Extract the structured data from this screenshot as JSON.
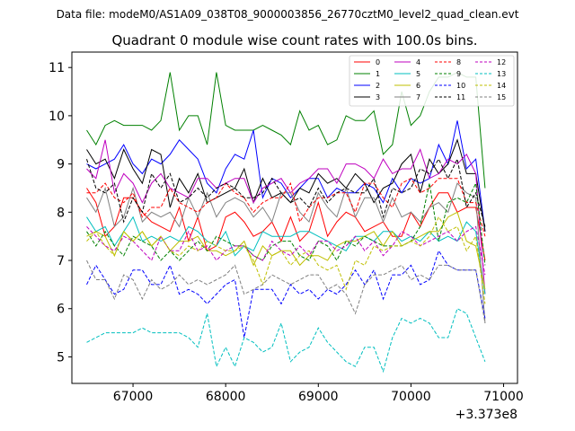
{
  "chart_data": {
    "type": "line",
    "suptitle": "Data file: modeM0/AS1A09_038T08_9000003856_26770cztM0_level2_quad_clean.evt",
    "title": "Quadrant 0 module wise count rates with 100.0s bins.",
    "xlabel": "",
    "ylabel": "",
    "x_offset_label": "+3.373e8",
    "xlim": [
      66340,
      71150
    ],
    "ylim": [
      4.45,
      11.32
    ],
    "xticks": [
      67000,
      68000,
      69000,
      70000,
      71000
    ],
    "yticks": [
      5,
      6,
      7,
      8,
      9,
      10,
      11
    ],
    "grid": false,
    "legend_position": "top-right",
    "legend_columns": 4,
    "x": [
      66500,
      66600,
      66700,
      66800,
      66900,
      67000,
      67100,
      67200,
      67300,
      67400,
      67500,
      67600,
      67700,
      67800,
      67900,
      68000,
      68100,
      68200,
      68300,
      68400,
      68500,
      68600,
      68700,
      68800,
      68900,
      69000,
      69100,
      69200,
      69300,
      69400,
      69500,
      69600,
      69700,
      69800,
      69900,
      70000,
      70100,
      70200,
      70300,
      70400,
      70500,
      70600,
      70700,
      70800
    ],
    "series": [
      {
        "name": "0",
        "color": "#ff0000",
        "dash": false,
        "values": [
          8.5,
          8.2,
          7.5,
          7.7,
          8.3,
          8.3,
          8.0,
          7.8,
          7.7,
          7.6,
          8.1,
          7.4,
          7.9,
          7.2,
          7.3,
          7.9,
          8.0,
          7.8,
          7.5,
          7.6,
          7.8,
          7.4,
          7.9,
          7.4,
          7.6,
          8.2,
          7.5,
          7.8,
          8.0,
          7.9,
          7.6,
          7.7,
          7.8,
          7.5,
          7.5,
          8.0,
          7.7,
          8.1,
          8.4,
          8.4,
          8.0,
          8.1,
          8.1,
          7.0
        ]
      },
      {
        "name": "1",
        "color": "#008000",
        "dash": false,
        "values": [
          9.7,
          9.4,
          9.8,
          9.9,
          9.8,
          9.8,
          9.8,
          9.7,
          9.9,
          10.9,
          9.7,
          10.0,
          10.0,
          9.4,
          10.9,
          9.8,
          9.7,
          9.7,
          9.7,
          9.8,
          9.7,
          9.6,
          9.4,
          10.1,
          9.7,
          9.8,
          9.4,
          9.5,
          10.0,
          9.9,
          9.9,
          10.1,
          9.2,
          9.4,
          10.5,
          9.8,
          10.0,
          10.5,
          10.8,
          10.8,
          10.9,
          10.8,
          10.8,
          8.5
        ]
      },
      {
        "name": "2",
        "color": "#0000ff",
        "dash": false,
        "values": [
          9.0,
          8.9,
          9.0,
          9.1,
          9.4,
          9.0,
          8.8,
          9.1,
          9.0,
          9.2,
          9.5,
          9.3,
          9.1,
          8.6,
          8.4,
          8.9,
          9.2,
          9.1,
          9.7,
          8.3,
          8.7,
          8.6,
          8.3,
          8.5,
          8.7,
          8.7,
          8.3,
          8.5,
          8.4,
          8.4,
          8.6,
          8.5,
          8.2,
          8.7,
          8.4,
          8.7,
          8.6,
          8.7,
          9.4,
          9.0,
          9.9,
          8.9,
          9.1,
          7.6
        ]
      },
      {
        "name": "3",
        "color": "#000000",
        "dash": false,
        "values": [
          9.3,
          9.0,
          9.1,
          8.7,
          9.3,
          8.9,
          8.6,
          9.3,
          9.2,
          8.1,
          8.7,
          8.4,
          8.8,
          8.2,
          8.3,
          8.4,
          8.5,
          8.9,
          8.2,
          8.7,
          8.3,
          8.4,
          8.2,
          8.5,
          8.4,
          8.8,
          8.6,
          8.7,
          8.5,
          8.8,
          8.6,
          8.2,
          8.5,
          8.6,
          9.0,
          9.2,
          8.4,
          9.1,
          8.8,
          9.0,
          9.5,
          8.8,
          8.8,
          7.6
        ]
      },
      {
        "name": "4",
        "color": "#bf00bf",
        "dash": false,
        "values": [
          8.9,
          8.7,
          9.5,
          8.4,
          8.8,
          8.6,
          8.2,
          8.6,
          8.8,
          8.5,
          8.4,
          8.3,
          8.7,
          8.7,
          8.5,
          8.6,
          8.7,
          8.7,
          8.2,
          8.5,
          8.6,
          8.7,
          8.4,
          8.6,
          8.7,
          8.9,
          8.9,
          8.6,
          9.0,
          9.0,
          8.9,
          8.7,
          9.1,
          8.8,
          8.9,
          8.9,
          9.3,
          8.7,
          8.8,
          9.1,
          9.0,
          9.2,
          8.8,
          6.3
        ]
      },
      {
        "name": "5",
        "color": "#00bfbf",
        "dash": false,
        "values": [
          7.9,
          7.6,
          7.7,
          7.3,
          7.6,
          7.9,
          7.4,
          7.5,
          7.4,
          7.5,
          7.4,
          7.7,
          7.6,
          7.4,
          7.3,
          7.6,
          7.1,
          7.3,
          7.2,
          7.6,
          7.5,
          7.5,
          7.5,
          7.6,
          7.6,
          7.5,
          7.4,
          7.3,
          7.2,
          7.5,
          7.5,
          7.4,
          7.6,
          7.6,
          7.4,
          7.5,
          7.4,
          7.6,
          7.4,
          7.5,
          7.4,
          7.8,
          7.6,
          6.3
        ]
      },
      {
        "name": "6",
        "color": "#bfbf00",
        "dash": false,
        "values": [
          7.5,
          7.6,
          7.5,
          7.1,
          7.6,
          7.4,
          7.6,
          7.3,
          7.5,
          7.2,
          7.4,
          7.4,
          7.5,
          7.2,
          7.2,
          7.1,
          7.2,
          7.4,
          6.9,
          7.3,
          7.1,
          7.2,
          7.2,
          6.9,
          7.1,
          7.1,
          7.0,
          7.3,
          7.4,
          7.4,
          7.5,
          7.6,
          7.3,
          7.6,
          7.3,
          7.4,
          7.5,
          7.6,
          7.6,
          7.9,
          8.0,
          7.4,
          7.3,
          6.4
        ]
      },
      {
        "name": "7",
        "color": "#808080",
        "dash": false,
        "values": [
          8.3,
          8.0,
          8.5,
          7.7,
          7.9,
          8.5,
          7.8,
          8.0,
          7.9,
          8.0,
          7.7,
          8.3,
          7.9,
          8.4,
          7.9,
          8.2,
          8.3,
          8.2,
          7.9,
          8.1,
          7.8,
          8.4,
          8.4,
          8.0,
          7.8,
          8.4,
          8.1,
          7.9,
          8.5,
          7.9,
          8.3,
          8.3,
          7.8,
          8.3,
          7.9,
          8.0,
          7.8,
          8.1,
          8.2,
          8.0,
          8.6,
          8.4,
          8.3,
          5.7
        ]
      },
      {
        "name": "8",
        "color": "#ff0000",
        "dash": true,
        "values": [
          8.4,
          8.4,
          8.6,
          8.3,
          8.2,
          8.4,
          7.9,
          8.1,
          8.1,
          8.5,
          8.2,
          8.1,
          8.0,
          8.2,
          8.3,
          8.6,
          8.4,
          8.3,
          8.0,
          8.2,
          8.3,
          8.3,
          8.6,
          7.8,
          8.1,
          8.3,
          8.3,
          8.4,
          8.4,
          8.0,
          8.6,
          8.6,
          8.3,
          8.1,
          8.6,
          8.7,
          8.4,
          8.5,
          8.7,
          8.7,
          8.7,
          8.2,
          8.2,
          7.5
        ]
      },
      {
        "name": "9",
        "color": "#008000",
        "dash": true,
        "values": [
          7.6,
          7.3,
          7.6,
          7.3,
          7.1,
          7.5,
          7.4,
          7.3,
          7.0,
          7.2,
          7.0,
          7.2,
          7.4,
          7.2,
          7.5,
          7.4,
          7.3,
          7.3,
          7.1,
          7.0,
          7.3,
          7.4,
          7.4,
          7.1,
          7.0,
          7.4,
          7.3,
          7.0,
          7.4,
          7.3,
          7.5,
          7.4,
          7.3,
          7.3,
          7.3,
          7.4,
          7.7,
          8.6,
          7.4,
          8.2,
          8.3,
          8.2,
          8.6,
          6.9
        ]
      },
      {
        "name": "10",
        "color": "#0000ff",
        "dash": true,
        "values": [
          6.5,
          6.9,
          6.6,
          6.3,
          6.4,
          6.8,
          6.8,
          6.5,
          6.5,
          6.9,
          6.3,
          6.4,
          6.3,
          6.1,
          6.3,
          6.5,
          6.6,
          5.4,
          6.4,
          6.4,
          6.4,
          6.1,
          6.5,
          6.3,
          6.4,
          6.2,
          6.4,
          6.3,
          6.5,
          6.8,
          6.5,
          6.8,
          6.2,
          6.7,
          6.7,
          6.9,
          6.5,
          6.6,
          7.2,
          6.9,
          6.8,
          6.8,
          6.8,
          5.8
        ]
      },
      {
        "name": "11",
        "color": "#000000",
        "dash": true,
        "values": [
          9.1,
          8.5,
          8.4,
          8.6,
          7.8,
          8.3,
          8.0,
          8.8,
          8.5,
          8.8,
          8.2,
          8.3,
          8.5,
          8.3,
          8.5,
          8.6,
          8.5,
          8.3,
          8.3,
          8.4,
          8.7,
          8.4,
          8.2,
          8.3,
          8.1,
          8.5,
          8.2,
          8.4,
          8.5,
          8.4,
          8.4,
          8.7,
          7.9,
          8.5,
          8.4,
          8.5,
          8.9,
          8.8,
          9.1,
          8.7,
          9.1,
          8.1,
          8.4,
          7.7
        ]
      },
      {
        "name": "12",
        "color": "#bf00bf",
        "dash": true,
        "values": [
          7.7,
          7.5,
          7.3,
          7.2,
          7.5,
          7.4,
          7.2,
          7.0,
          7.5,
          7.2,
          7.2,
          7.6,
          7.2,
          7.3,
          7.0,
          7.2,
          7.3,
          7.3,
          7.1,
          7.0,
          7.4,
          7.2,
          7.1,
          7.3,
          7.1,
          7.4,
          7.4,
          7.2,
          7.3,
          7.5,
          7.2,
          7.4,
          7.1,
          7.3,
          7.6,
          7.5,
          7.3,
          7.4,
          7.5,
          7.6,
          7.4,
          7.6,
          7.7,
          6.7
        ]
      },
      {
        "name": "13",
        "color": "#00bfbf",
        "dash": true,
        "values": [
          5.3,
          5.4,
          5.5,
          5.5,
          5.5,
          5.5,
          5.6,
          5.5,
          5.5,
          5.5,
          5.5,
          5.4,
          5.2,
          5.9,
          4.8,
          5.2,
          4.8,
          5.4,
          5.3,
          5.1,
          5.2,
          5.7,
          4.9,
          5.1,
          5.2,
          5.6,
          5.3,
          5.1,
          4.9,
          4.8,
          5.2,
          5.2,
          4.7,
          5.4,
          5.8,
          5.7,
          5.8,
          5.7,
          5.4,
          5.4,
          6.0,
          5.9,
          5.4,
          4.9
        ]
      },
      {
        "name": "14",
        "color": "#bfbf00",
        "dash": true,
        "values": [
          7.4,
          7.6,
          7.3,
          7.1,
          7.6,
          7.4,
          7.6,
          7.3,
          7.5,
          7.2,
          7.1,
          7.3,
          7.2,
          7.4,
          7.3,
          7.2,
          7.2,
          7.3,
          7.0,
          6.5,
          7.1,
          7.2,
          6.9,
          7.1,
          7.2,
          6.9,
          6.8,
          6.9,
          6.4,
          7.0,
          6.9,
          7.3,
          7.2,
          7.3,
          7.3,
          7.4,
          7.3,
          7.5,
          7.9,
          7.6,
          7.7,
          7.2,
          7.5,
          6.1
        ]
      },
      {
        "name": "15",
        "color": "#808080",
        "dash": true,
        "values": [
          7.0,
          6.6,
          6.6,
          6.2,
          6.7,
          6.6,
          6.2,
          6.6,
          6.4,
          6.5,
          6.7,
          6.5,
          6.6,
          6.5,
          6.6,
          6.7,
          6.9,
          6.3,
          6.4,
          6.5,
          6.7,
          6.6,
          6.5,
          6.6,
          6.7,
          6.7,
          6.4,
          6.5,
          6.3,
          5.9,
          6.5,
          6.7,
          6.7,
          6.8,
          6.9,
          6.6,
          6.7,
          6.6,
          6.9,
          6.9,
          6.8,
          6.8,
          6.8,
          5.7
        ]
      }
    ]
  }
}
